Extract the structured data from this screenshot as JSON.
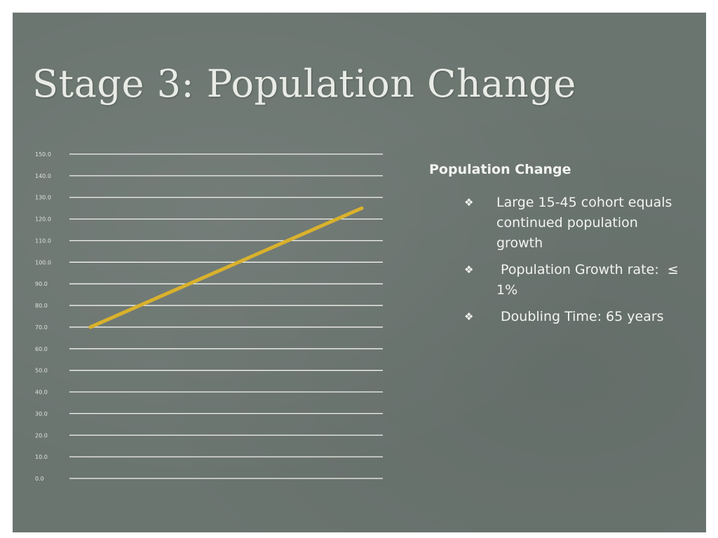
{
  "slide": {
    "title": "Stage 3: Population Change"
  },
  "panel": {
    "heading": "Population Change",
    "bullet_icon": "diamond-bullet-icon",
    "bullets": [
      "Large 15-45 cohort equals continued population growth",
      " Population Growth rate:  ≤ 1%",
      " Doubling Time: 65 years"
    ]
  },
  "colors": {
    "background": "#6b7570",
    "gridline": "#f4f4f0",
    "line": "#d9b12c",
    "text": "#f2f4f0"
  },
  "chart_data": {
    "type": "line",
    "title": "",
    "xlabel": "",
    "ylabel": "",
    "ylim": [
      0,
      150
    ],
    "yticks": [
      "0.0",
      "10.0",
      "20.0",
      "30.0",
      "40.0",
      "50.0",
      "60.0",
      "70.0",
      "80.0",
      "90.0",
      "100.0",
      "110.0",
      "120.0",
      "130.0",
      "140.0",
      "150.0"
    ],
    "grid": true,
    "legend": "none",
    "x": [
      0,
      1
    ],
    "series": [
      {
        "values": [
          70,
          125
        ]
      }
    ]
  }
}
